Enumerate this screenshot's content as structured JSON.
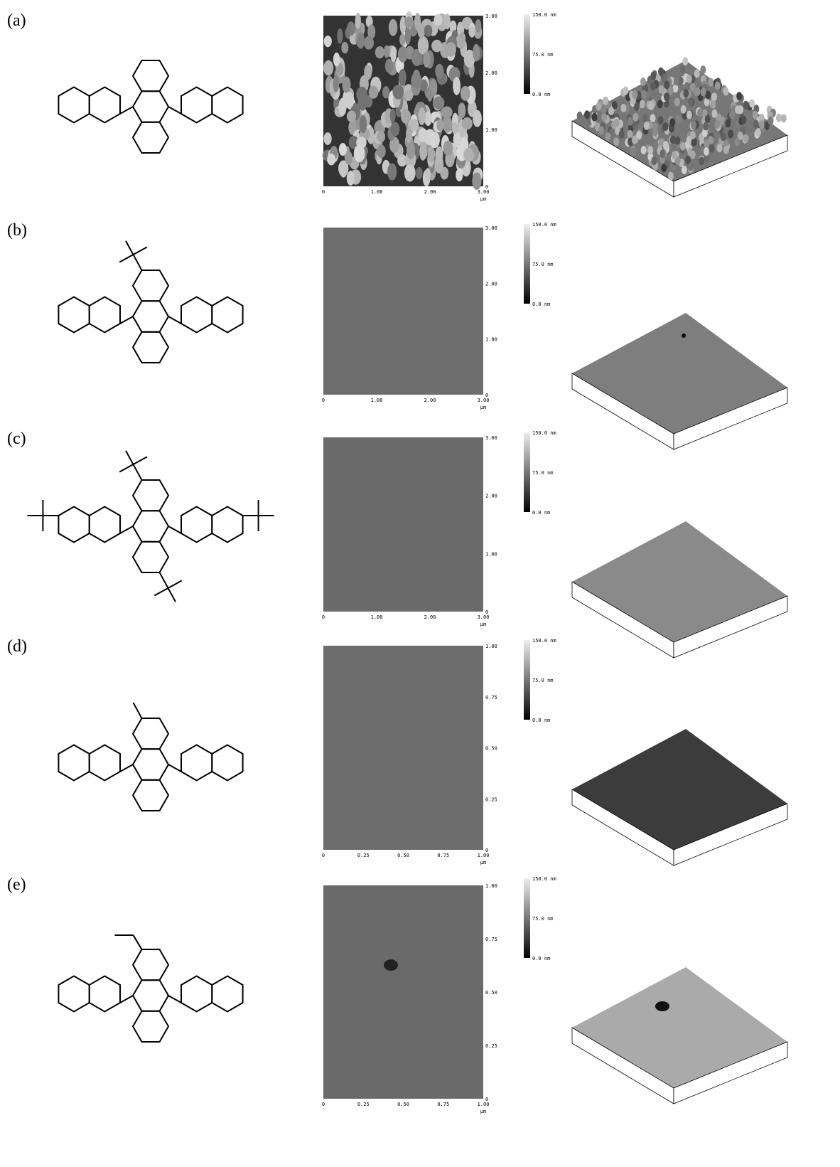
{
  "panels": [
    {
      "label": "(a)",
      "afm": {
        "x_ticks": [
          "0",
          "1.00",
          "2.00",
          "3.00"
        ],
        "y_ticks": [
          "3.00",
          "2.00",
          "1.00",
          "0"
        ],
        "unit": "µm",
        "scale": [
          "150.0 nm",
          "75.0 nm",
          "0.0 nm"
        ]
      }
    },
    {
      "label": "(b)",
      "afm": {
        "x_ticks": [
          "0",
          "1.00",
          "2.00",
          "3.00"
        ],
        "y_ticks": [
          "3.00",
          "2.00",
          "1.00",
          "0"
        ],
        "unit": "µm",
        "scale": [
          "150.0 nm",
          "75.0 nm",
          "0.0 nm"
        ]
      }
    },
    {
      "label": "(c)",
      "afm": {
        "x_ticks": [
          "0",
          "1.00",
          "2.00",
          "3.00"
        ],
        "y_ticks": [
          "3.00",
          "2.00",
          "1.00",
          "0"
        ],
        "unit": "µm",
        "scale": [
          "150.0 nm",
          "75.0 nm",
          "0.0 nm"
        ]
      }
    },
    {
      "label": "(d)",
      "afm": {
        "x_ticks": [
          "0",
          "0.25",
          "0.50",
          "0.75",
          "1.00"
        ],
        "y_ticks": [
          "1.00",
          "0.75",
          "0.50",
          "0.25",
          "0"
        ],
        "unit": "µm",
        "scale": [
          "150.0 nm",
          "75.0 nm",
          "0.0 nm"
        ]
      }
    },
    {
      "label": "(e)",
      "afm": {
        "x_ticks": [
          "0",
          "0.25",
          "0.50",
          "0.75",
          "1.00"
        ],
        "y_ticks": [
          "1.00",
          "0.75",
          "0.50",
          "0.25",
          "0"
        ],
        "unit": "µm",
        "scale": [
          "150.0 nm",
          "75.0 nm",
          "0.0 nm"
        ]
      }
    }
  ]
}
